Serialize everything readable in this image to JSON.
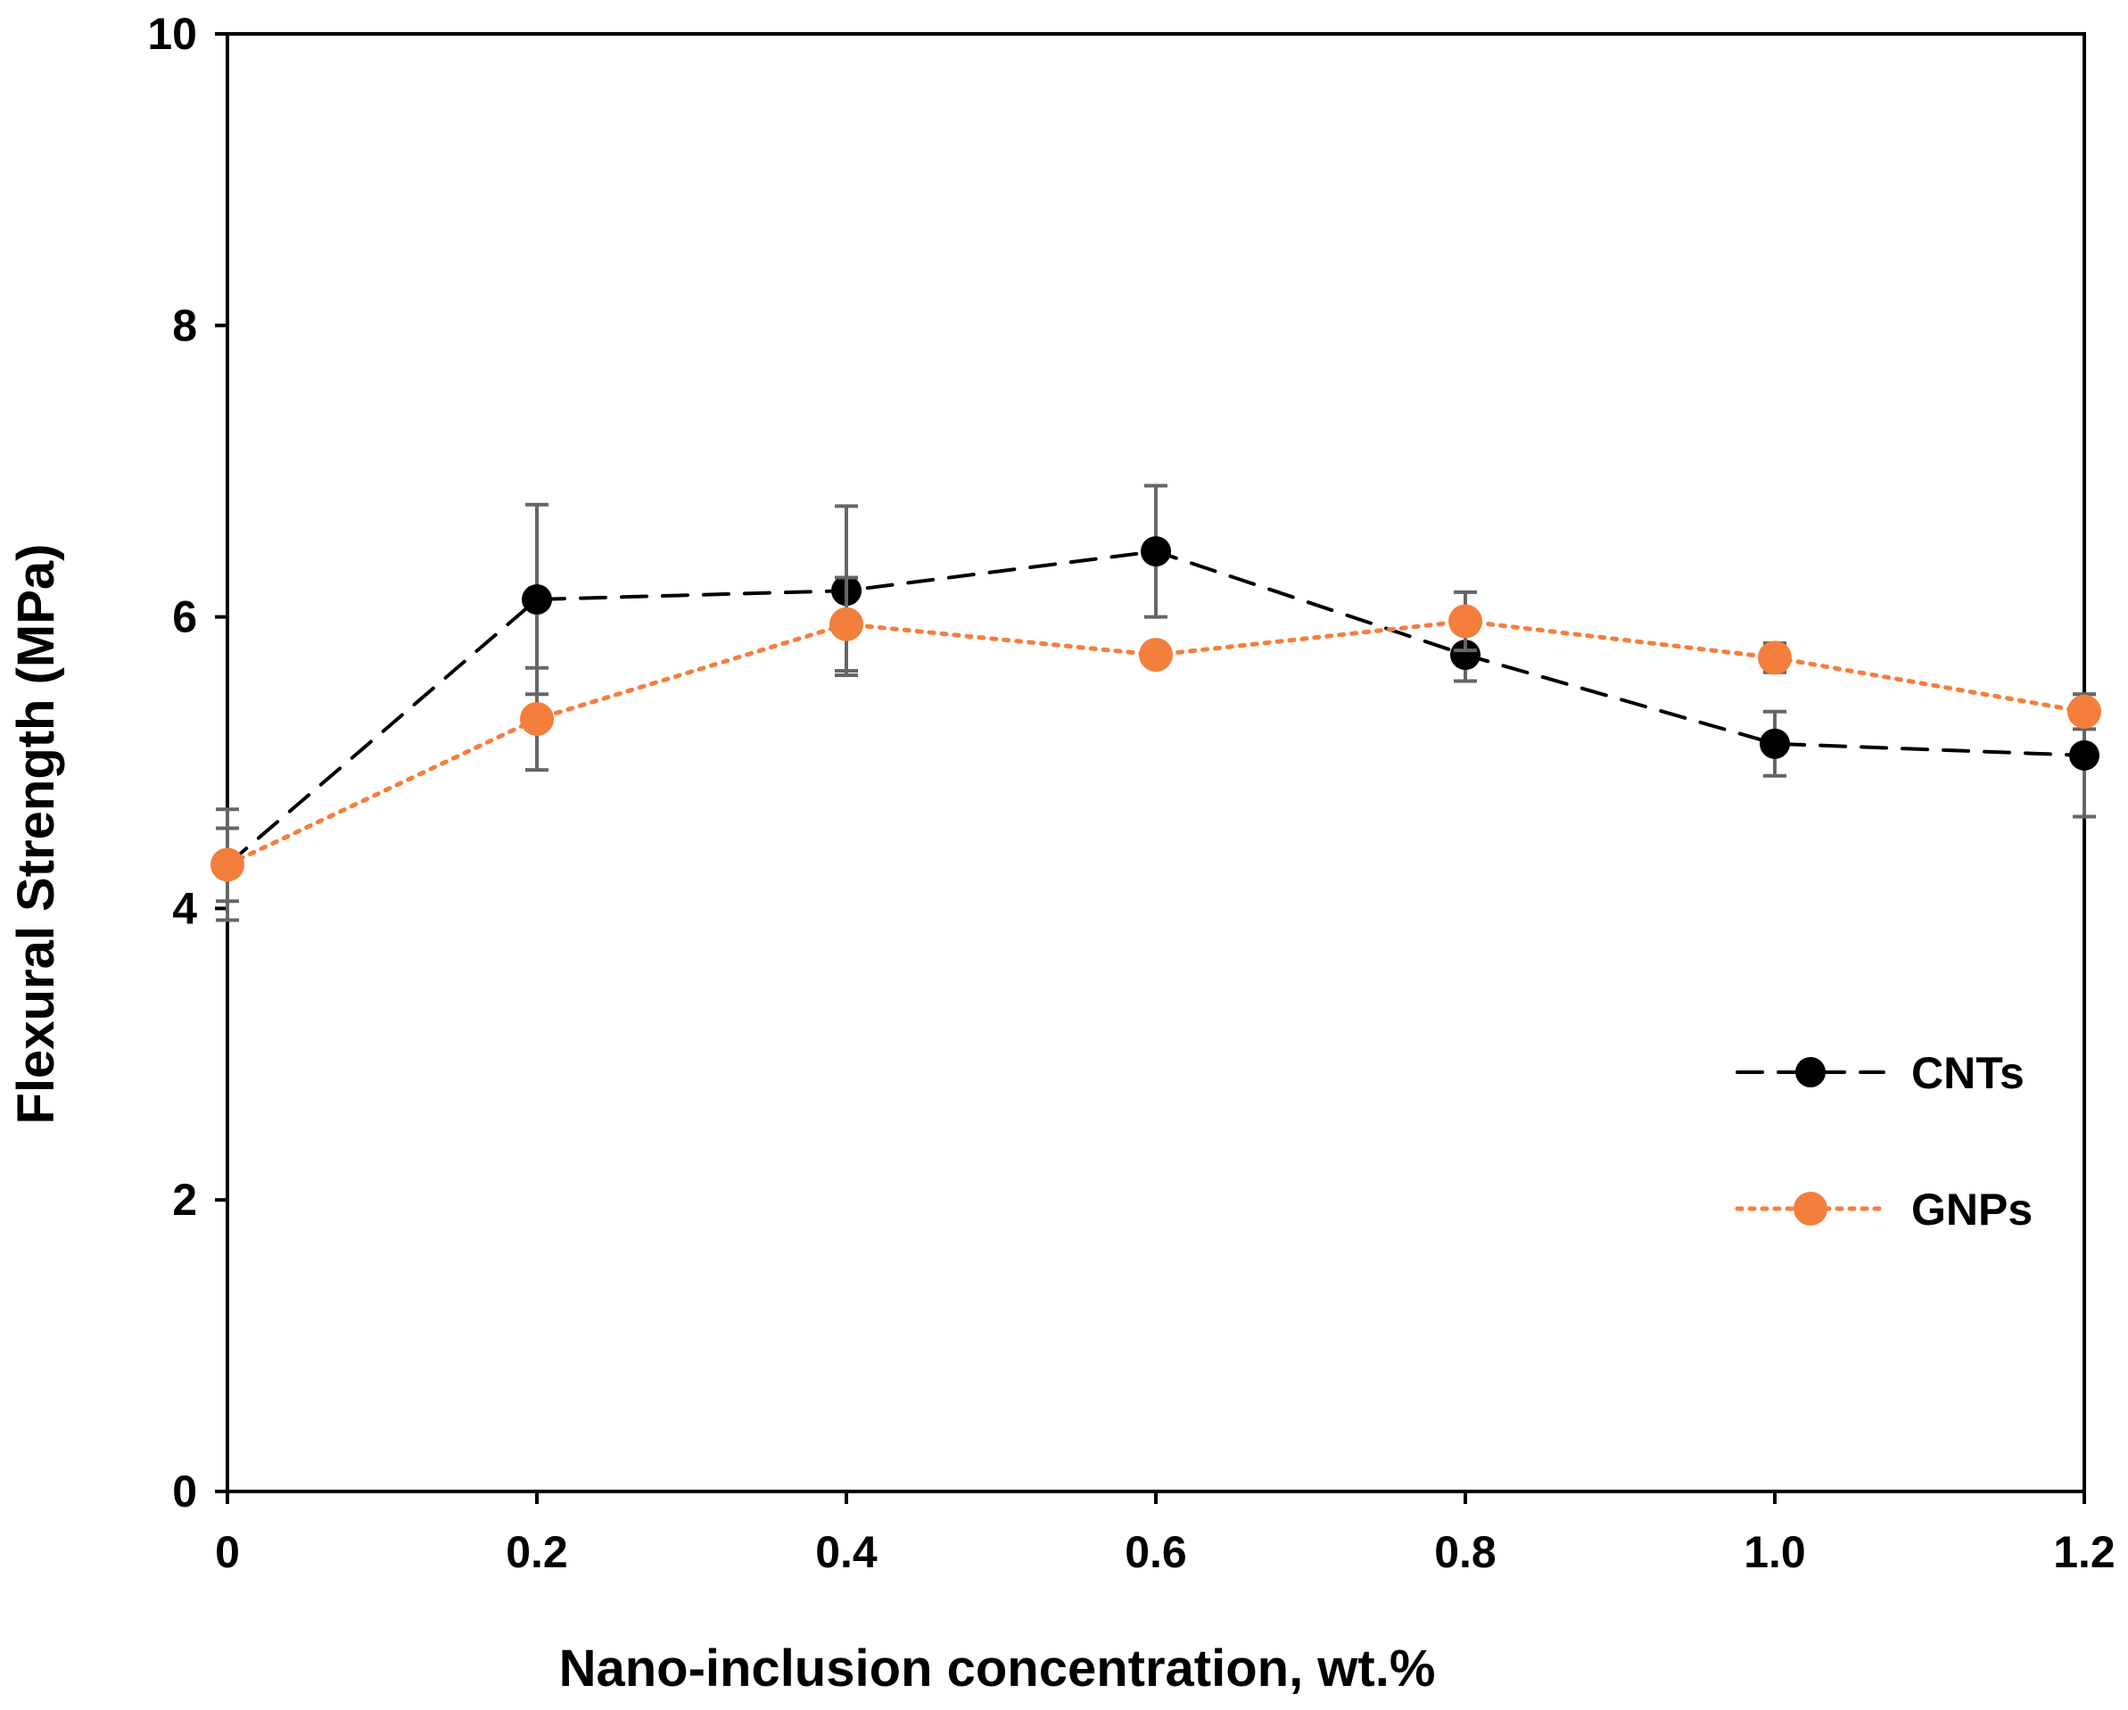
{
  "chart_data": {
    "type": "line",
    "title": "",
    "xlabel": "Nano-inclusion concentration, wt.%",
    "ylabel": "Flexural Strength (MPa)",
    "xlim": [
      0,
      1.2
    ],
    "ylim": [
      0,
      10
    ],
    "x": [
      0,
      0.2,
      0.4,
      0.6,
      0.8,
      1.0,
      1.2
    ],
    "x_tick_labels": [
      "0",
      "0.2",
      "0.4",
      "0.6",
      "0.8",
      "1.0",
      "1.2"
    ],
    "y_ticks": [
      0,
      2,
      4,
      6,
      8,
      10
    ],
    "y_tick_labels": [
      "0",
      "2",
      "4",
      "6",
      "8",
      "10"
    ],
    "grid": false,
    "legend_position": "right",
    "series": [
      {
        "name": "CNTs",
        "color": "#000000",
        "line_style": "dashed",
        "values": [
          4.3,
          6.12,
          6.18,
          6.45,
          5.74,
          5.13,
          5.05
        ],
        "error": [
          0.38,
          0.65,
          0.58,
          0.45,
          0.18,
          0.22,
          0.42
        ]
      },
      {
        "name": "GNPs",
        "color": "#F47E3C",
        "line_style": "dotted",
        "values": [
          4.3,
          5.3,
          5.95,
          5.74,
          5.97,
          5.72,
          5.35
        ],
        "error": [
          0.25,
          0.35,
          0.32,
          0.0,
          0.2,
          0.1,
          0.12
        ]
      }
    ]
  }
}
